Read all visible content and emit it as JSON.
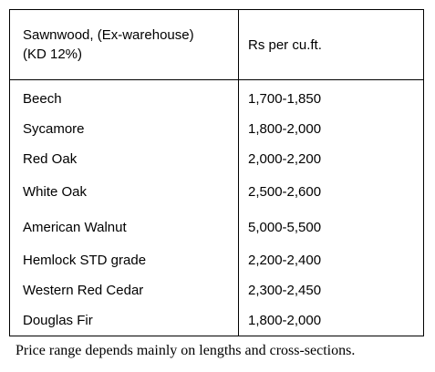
{
  "table": {
    "header": {
      "wood_line1": "Sawnwood, (Ex-warehouse)",
      "wood_line2": "(KD 12%)",
      "price": "Rs per cu.ft."
    },
    "rows": [
      {
        "wood": "Beech",
        "price": "1,700-1,850"
      },
      {
        "wood": "Sycamore",
        "price": "1,800-2,000"
      },
      {
        "wood": "Red Oak",
        "price": "2,000-2,200"
      },
      {
        "wood": "White Oak",
        "price": "2,500-2,600"
      },
      {
        "wood": "American Walnut",
        "price": "5,000-5,500"
      },
      {
        "wood": "Hemlock STD grade",
        "price": "2,200-2,400"
      },
      {
        "wood": "Western Red Cedar",
        "price": "2,300-2,450"
      },
      {
        "wood": "Douglas Fir",
        "price": "1,800-2,000"
      }
    ]
  },
  "footnote": "Price range depends mainly on lengths and cross-sections."
}
